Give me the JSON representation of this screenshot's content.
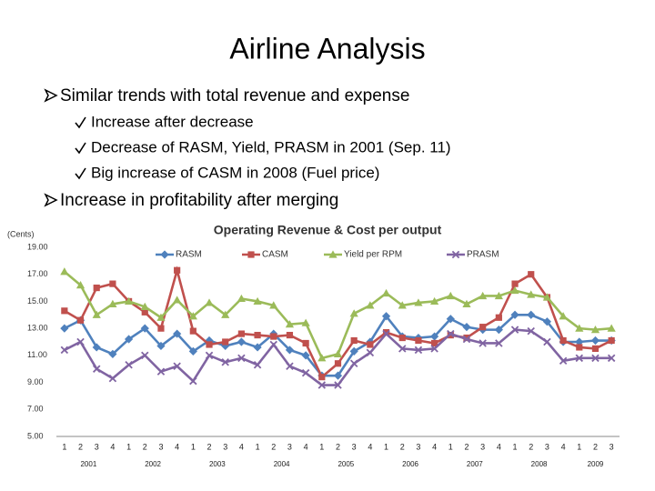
{
  "title": "Airline Analysis",
  "bullets": [
    {
      "text": "Similar trends with total revenue and expense",
      "sub": [
        "Increase after decrease",
        "Decrease of RASM, Yield, PRASM in 2001 (Sep. 11)",
        "Big increase of CASM in 2008 (Fuel price)"
      ]
    },
    {
      "text": "Increase in profitability after merging"
    }
  ],
  "chart_data": {
    "type": "line",
    "title": "Operating Revenue & Cost per output",
    "y_label": "(Cents)",
    "categories": [
      "1",
      "2",
      "3",
      "4",
      "1",
      "2",
      "3",
      "4",
      "1",
      "2",
      "3",
      "4",
      "1",
      "2",
      "3",
      "4",
      "1",
      "2",
      "3",
      "4",
      "1",
      "2",
      "3",
      "4",
      "1",
      "2",
      "3",
      "4",
      "1",
      "2",
      "3",
      "4",
      "1",
      "2",
      "3"
    ],
    "year_labels": [
      "2001",
      "2002",
      "2003",
      "2004",
      "2005",
      "2006",
      "2007",
      "2008",
      "2009"
    ],
    "ylim": [
      5,
      19
    ],
    "yticks": [
      {
        "value": 5,
        "label": "5.00"
      },
      {
        "value": 7,
        "label": "7.00"
      },
      {
        "value": 9,
        "label": "9.00"
      },
      {
        "value": 11,
        "label": "11.00"
      },
      {
        "value": 13,
        "label": "13.00"
      },
      {
        "value": 15,
        "label": "15.00"
      },
      {
        "value": 17,
        "label": "17.00"
      },
      {
        "value": 19,
        "label": "19.00"
      }
    ],
    "grid": false,
    "legend": "top",
    "series": [
      {
        "name": "RASM",
        "color": "#4f81bd",
        "marker": "diamond",
        "values": [
          13.0,
          13.6,
          11.6,
          11.1,
          12.2,
          13.0,
          11.7,
          12.6,
          11.3,
          12.1,
          11.7,
          12.0,
          11.6,
          12.6,
          11.4,
          11.0,
          9.5,
          9.5,
          11.3,
          12.0,
          13.9,
          12.4,
          12.3,
          12.4,
          13.7,
          13.1,
          12.9,
          12.9,
          14.0,
          14.0,
          13.5,
          12.0,
          12.0,
          12.1,
          12.1
        ]
      },
      {
        "name": "CASM",
        "color": "#c0504d",
        "marker": "square",
        "values": [
          14.3,
          13.6,
          16.0,
          16.3,
          15.0,
          14.2,
          13.0,
          17.3,
          12.8,
          11.8,
          12.0,
          12.6,
          12.5,
          12.4,
          12.5,
          11.9,
          9.4,
          10.4,
          12.1,
          11.8,
          12.7,
          12.3,
          12.1,
          11.9,
          12.5,
          12.3,
          13.1,
          13.8,
          16.3,
          17.0,
          15.3,
          12.1,
          11.6,
          11.5,
          12.1
        ]
      },
      {
        "name": "Yield per RPM",
        "color": "#9bbb59",
        "marker": "triangle",
        "values": [
          17.2,
          16.2,
          14.0,
          14.8,
          15.0,
          14.6,
          13.8,
          15.1,
          13.9,
          14.9,
          14.0,
          15.2,
          15.0,
          14.7,
          13.3,
          13.4,
          10.8,
          11.1,
          14.1,
          14.7,
          15.6,
          14.7,
          14.9,
          15.0,
          15.4,
          14.8,
          15.4,
          15.4,
          15.8,
          15.5,
          15.3,
          13.9,
          13.0,
          12.9,
          13.0
        ]
      },
      {
        "name": "PRASM",
        "color": "#8064a2",
        "marker": "x",
        "values": [
          11.4,
          12.0,
          10.0,
          9.3,
          10.3,
          11.0,
          9.8,
          10.2,
          9.1,
          11.0,
          10.5,
          10.8,
          10.3,
          11.8,
          10.2,
          9.7,
          8.8,
          8.8,
          10.4,
          11.2,
          12.6,
          11.5,
          11.4,
          11.5,
          12.6,
          12.2,
          11.9,
          11.9,
          12.9,
          12.8,
          12.0,
          10.6,
          10.8,
          10.8,
          10.8
        ]
      }
    ]
  }
}
